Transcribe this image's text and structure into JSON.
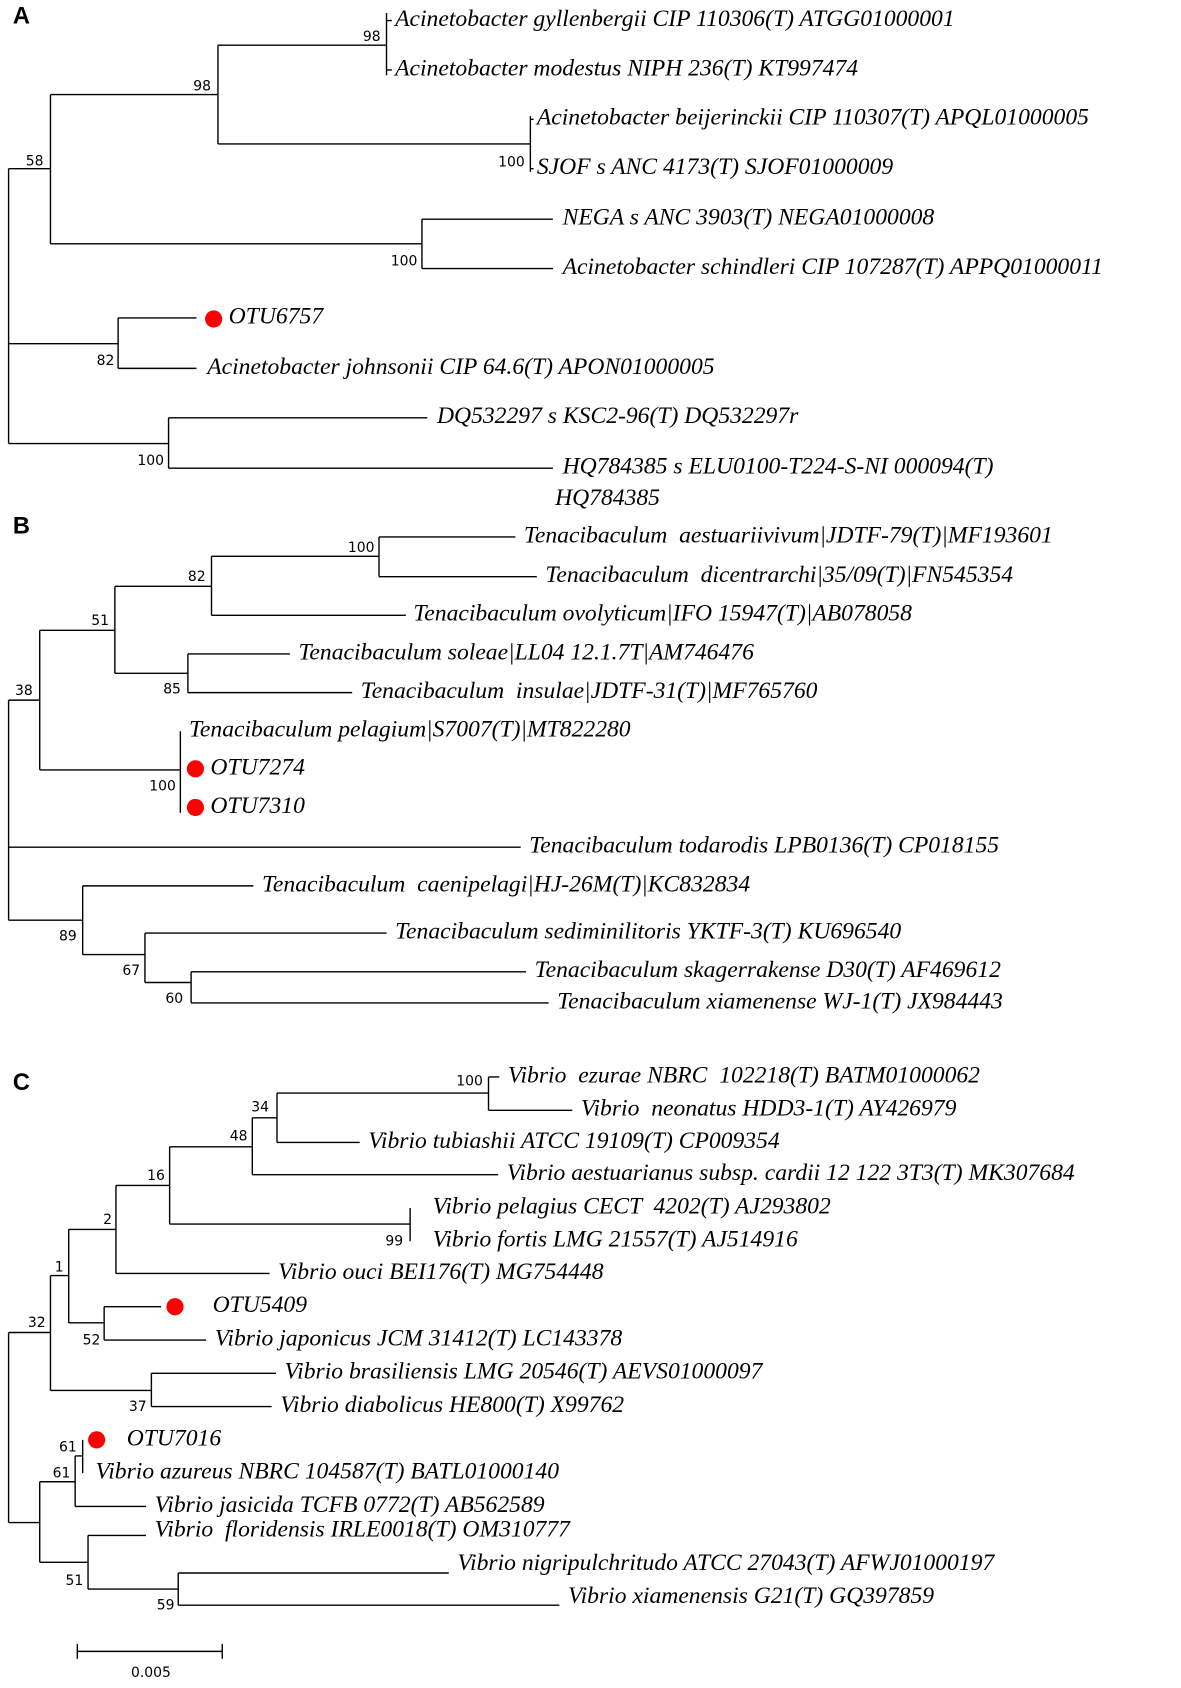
{
  "panels": [
    {
      "label": "A",
      "leaves": [
        "Acinetobacter gyllenbergii CIP 110306(T) ATGG01000001",
        "Acinetobacter modestus NIPH 236(T) KT997474",
        "Acinetobacter beijerinckii CIP 110307(T) APQL01000005",
        "SJOF s ANC 4173(T) SJOF01000009",
        "NEGA s ANC 3903(T) NEGA01000008",
        "Acinetobacter schindleri CIP 107287(T) APPQ01000011",
        "OTU6757",
        "Acinetobacter johnsonii CIP 64.6(T) APON01000005",
        "DQ532297 s KSC2-96(T) DQ532297r",
        "HQ784385 s ELU0100-T224-S-NI 000094(T)",
        "HQ784385"
      ],
      "bootstrap": [
        98,
        98,
        100,
        58,
        100,
        82,
        100
      ]
    },
    {
      "label": "B",
      "leaves": [
        "Tenacibaculum  aestuariivivum|JDTF-79(T)|MF193601",
        "Tenacibaculum  dicentrarchi|35/09(T)|FN545354",
        "Tenacibaculum ovolyticum|IFO 15947(T)|AB078058",
        "Tenacibaculum soleae|LL04 12.1.7T|AM746476",
        "Tenacibaculum  insulae|JDTF-31(T)|MF765760",
        "Tenacibaculum pelagium|S7007(T)|MT822280",
        "OTU7274",
        "OTU7310",
        "Tenacibaculum todarodis LPB0136(T) CP018155",
        "Tenacibaculum  caenipelagi|HJ-26M(T)|KC832834",
        "Tenacibaculum sediminilitoris YKTF-3(T) KU696540",
        "Tenacibaculum skagerrakense D30(T) AF469612",
        "Tenacibaculum xiamenense WJ-1(T) JX984443"
      ],
      "bootstrap": [
        100,
        82,
        51,
        85,
        38,
        100,
        89,
        67,
        60
      ]
    },
    {
      "label": "C",
      "leaves": [
        "Vibrio  ezurae NBRC  102218(T) BATM01000062",
        "Vibrio  neonatus HDD3-1(T) AY426979",
        "Vibrio tubiashii ATCC 19109(T) CP009354",
        "Vibrio aestuarianus subsp. cardii 12 122 3T3(T) MK307684",
        "Vibrio pelagius CECT  4202(T) AJ293802",
        "Vibrio fortis LMG 21557(T) AJ514916",
        "Vibrio ouci BEI176(T) MG754448",
        "OTU5409",
        "Vibrio japonicus JCM 31412(T) LC143378",
        "Vibrio brasiliensis LMG 20546(T) AEVS01000097",
        "Vibrio diabolicus HE800(T) X99762",
        "OTU7016",
        "Vibrio azureus NBRC 104587(T) BATL01000140",
        "Vibrio jasicida TCFB 0772(T) AB562589",
        "Vibrio  floridensis IRLE0018(T) OM310777",
        "Vibrio nigripulchritudo ATCC 27043(T) AFWJ01000197",
        "Vibrio xiamenensis G21(T) GQ397859"
      ],
      "bootstrap": [
        100,
        34,
        48,
        16,
        2,
        99,
        1,
        52,
        32,
        37,
        61,
        61,
        51,
        59
      ]
    }
  ],
  "scale_bar": {
    "label": "0.005"
  }
}
